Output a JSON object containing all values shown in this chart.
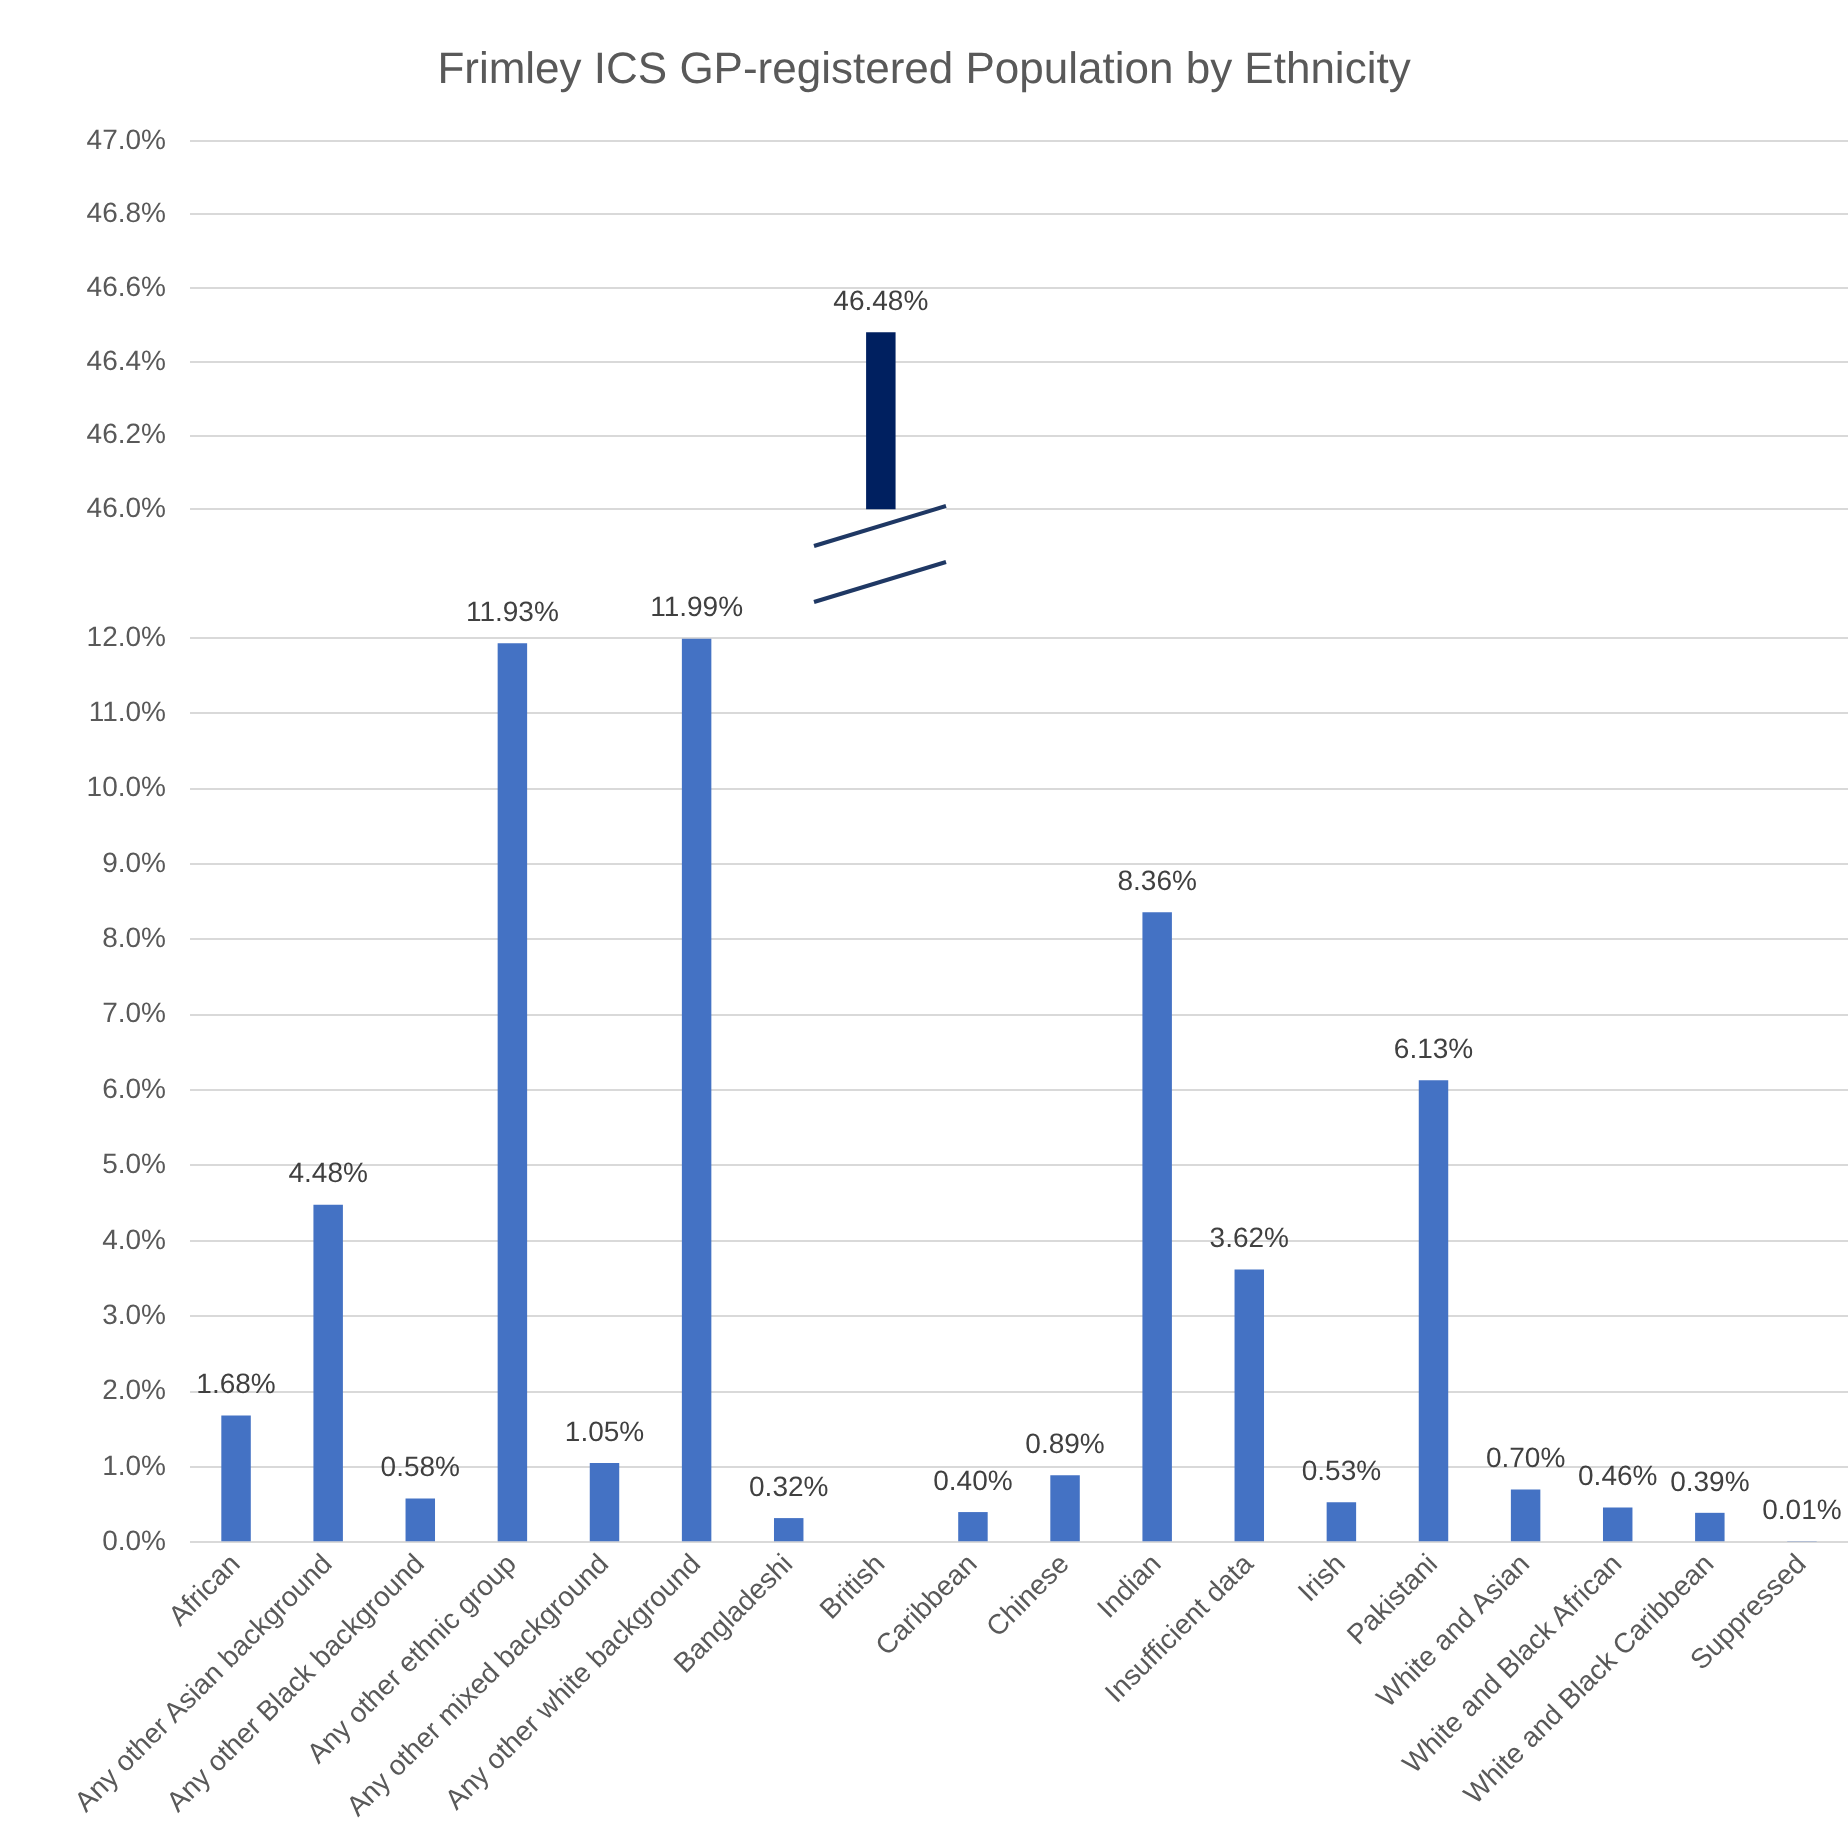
{
  "chart_data": [
    {
      "type": "bar",
      "title": "Frimley ICS GP-registered Population by Ethnicity",
      "categories": [
        null,
        null,
        null,
        null,
        null,
        null,
        null,
        null,
        null,
        null,
        null,
        null,
        null,
        null,
        null,
        null,
        null,
        null
      ],
      "values": [
        null,
        null,
        null,
        null,
        null,
        null,
        null,
        46.48,
        null,
        null,
        null,
        null,
        null,
        null,
        null,
        null,
        null,
        null
      ],
      "value_labels": [
        null,
        null,
        null,
        null,
        null,
        null,
        null,
        "46.48%",
        null,
        null,
        null,
        null,
        null,
        null,
        null,
        null,
        null,
        null
      ],
      "colors": [
        "#4472c4",
        "#4472c4",
        "#4472c4",
        "#4472c4",
        "#4472c4",
        "#4472c4",
        "#4472c4",
        "#002060",
        "#4472c4",
        "#4472c4",
        "#4472c4",
        "#4472c4",
        "#4472c4",
        "#4472c4",
        "#4472c4",
        "#4472c4",
        "#4472c4",
        "#4472c4"
      ],
      "ylim": [
        46.0,
        47.0
      ],
      "yticks": [
        {
          "value": 46.0,
          "label": "46.0%"
        },
        {
          "value": 46.2,
          "label": "46.2%"
        },
        {
          "value": 46.4,
          "label": "46.4%"
        },
        {
          "value": 46.6,
          "label": "46.6%"
        },
        {
          "value": 46.8,
          "label": "46.8%"
        },
        {
          "value": 47.0,
          "label": "47.0%"
        }
      ],
      "grid": "y",
      "legend": false,
      "tick_labels": "y"
    },
    {
      "type": "bar",
      "categories": [
        "African",
        "Any other Asian background",
        "Any other Black background",
        "Any other ethnic group",
        "Any other mixed background",
        "Any other white background",
        "Bangladeshi",
        "British",
        "Caribbean",
        "Chinese",
        "Indian",
        "Insufficient data",
        "Irish",
        "Pakistani",
        "White and Asian",
        "White and Black African",
        "White and Black Caribbean",
        "Suppressed"
      ],
      "values": [
        1.68,
        4.48,
        0.58,
        11.93,
        1.05,
        11.99,
        0.32,
        null,
        0.4,
        0.89,
        8.36,
        3.62,
        0.53,
        6.13,
        0.7,
        0.46,
        0.39,
        0.01
      ],
      "value_labels": [
        "1.68%",
        "4.48%",
        "0.58%",
        "11.93%",
        "1.05%",
        "11.99%",
        "0.32%",
        null,
        "0.40%",
        "0.89%",
        "8.36%",
        "3.62%",
        "0.53%",
        "6.13%",
        "0.70%",
        "0.46%",
        "0.39%",
        "0.01%"
      ],
      "colors": [
        "#4472c4",
        "#4472c4",
        "#4472c4",
        "#4472c4",
        "#4472c4",
        "#4472c4",
        "#4472c4",
        "#002060",
        "#4472c4",
        "#4472c4",
        "#4472c4",
        "#4472c4",
        "#4472c4",
        "#4472c4",
        "#4472c4",
        "#4472c4",
        "#4472c4",
        "#4472c4"
      ],
      "ylim": [
        0,
        12
      ],
      "yticks": [
        {
          "value": 0,
          "label": "0.0%"
        },
        {
          "value": 1,
          "label": "1.0%"
        },
        {
          "value": 2,
          "label": "2.0%"
        },
        {
          "value": 3,
          "label": "3.0%"
        },
        {
          "value": 4,
          "label": "4.0%"
        },
        {
          "value": 5,
          "label": "5.0%"
        },
        {
          "value": 6,
          "label": "6.0%"
        },
        {
          "value": 7,
          "label": "7.0%"
        },
        {
          "value": 8,
          "label": "8.0%"
        },
        {
          "value": 9,
          "label": "9.0%"
        },
        {
          "value": 10,
          "label": "10.0%"
        },
        {
          "value": 11,
          "label": "11.0%"
        },
        {
          "value": 12,
          "label": "12.0%"
        }
      ],
      "grid": "y",
      "legend": false
    }
  ]
}
